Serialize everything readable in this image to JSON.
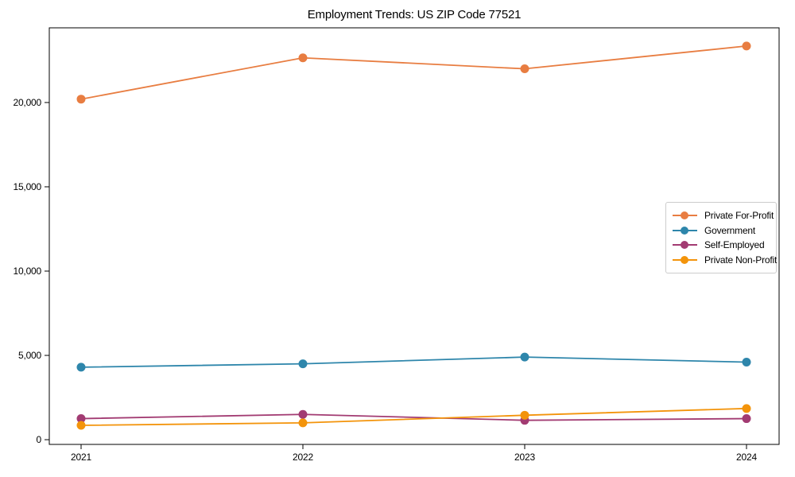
{
  "chart_data": {
    "type": "line",
    "title": "Employment Trends: US ZIP Code 77521",
    "xlabel": "",
    "ylabel": "",
    "categories": [
      "2021",
      "2022",
      "2023",
      "2024"
    ],
    "series": [
      {
        "name": "Private For-Profit",
        "color": "#E87D41",
        "values": [
          20200,
          22650,
          22000,
          23350
        ]
      },
      {
        "name": "Government",
        "color": "#2E86AB",
        "values": [
          4300,
          4500,
          4900,
          4600
        ]
      },
      {
        "name": "Self-Employed",
        "color": "#A23B72",
        "values": [
          1250,
          1500,
          1150,
          1250
        ]
      },
      {
        "name": "Private Non-Profit",
        "color": "#F3940B",
        "values": [
          850,
          1000,
          1450,
          1850
        ]
      }
    ],
    "yticks": [
      0,
      5000,
      10000,
      15000,
      20000
    ],
    "ytick_labels": [
      "0",
      "5,000",
      "10,000",
      "15,000",
      "20,000"
    ],
    "ylim": [
      -280,
      24430
    ],
    "grid": false,
    "legend_position": "middle-right",
    "marker": "circle"
  }
}
